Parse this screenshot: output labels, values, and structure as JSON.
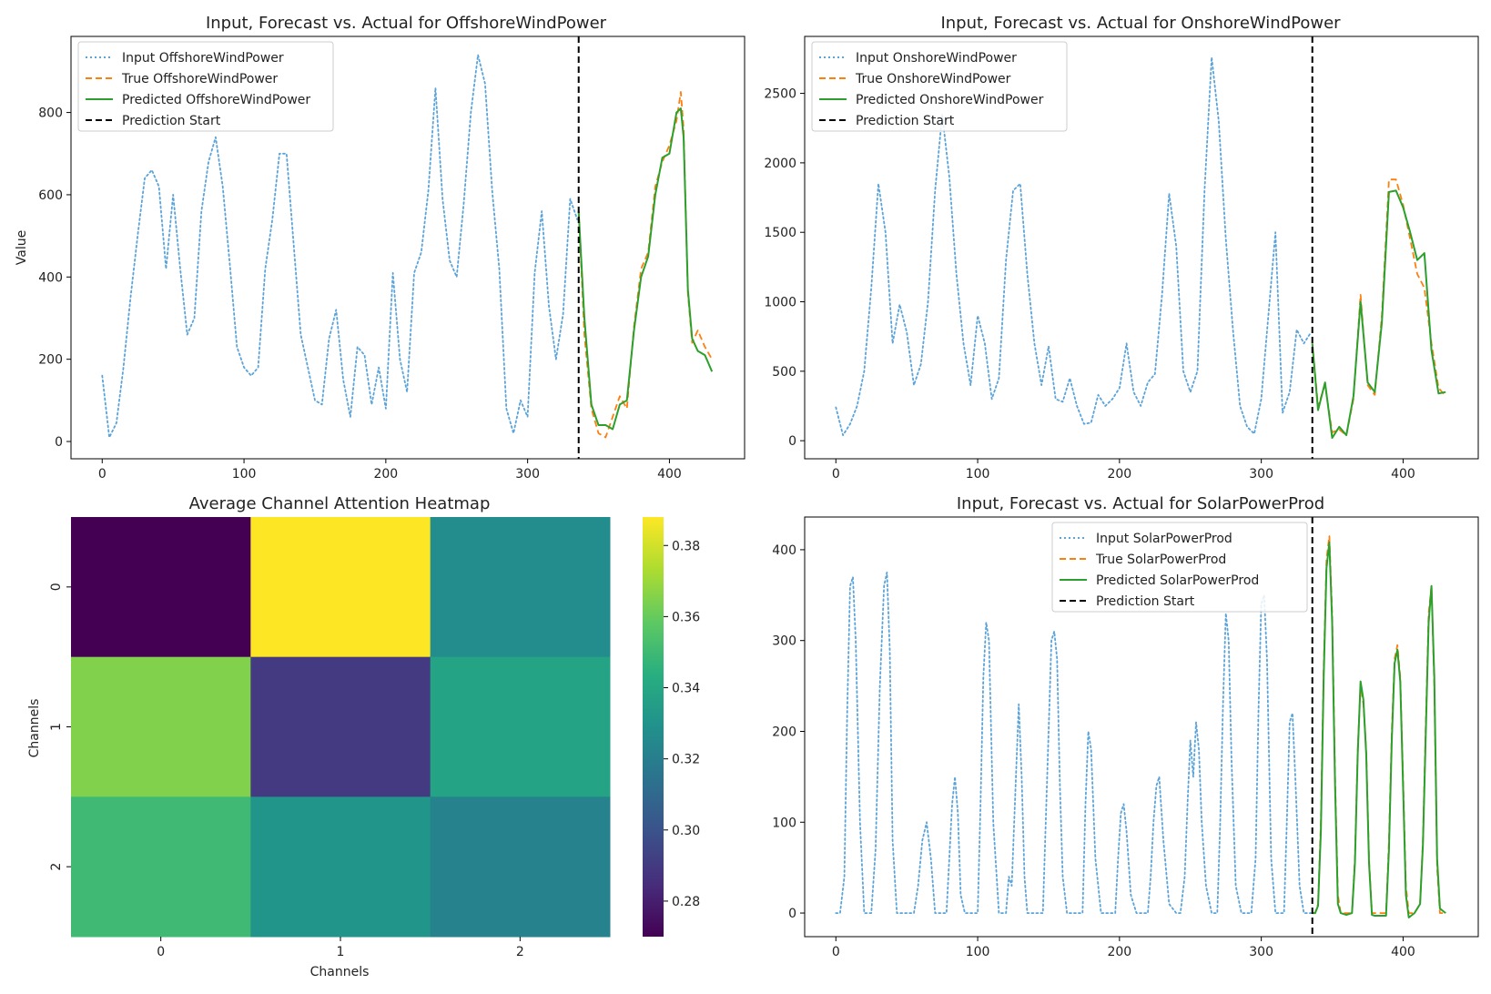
{
  "chart_data": [
    {
      "type": "line",
      "title": "Input, Forecast vs. Actual for OffshoreWindPower",
      "xlabel": "",
      "ylabel": "Value",
      "xlim": [
        -22,
        453
      ],
      "ylim": [
        -42,
        985
      ],
      "xticks": [
        0,
        100,
        200,
        300,
        400
      ],
      "yticks": [
        0,
        200,
        400,
        600,
        800
      ],
      "prediction_start": 336,
      "legend_position": "top-left",
      "legend": [
        "Input OffshoreWindPower",
        "True OffshoreWindPower",
        "Predicted OffshoreWindPower",
        "Prediction Start"
      ],
      "series": [
        {
          "name": "Input OffshoreWindPower",
          "style": "dotted",
          "color": "#5ba3d9",
          "x": [
            0,
            5,
            10,
            15,
            20,
            25,
            30,
            35,
            40,
            45,
            50,
            55,
            60,
            65,
            70,
            75,
            80,
            85,
            90,
            95,
            100,
            105,
            110,
            115,
            120,
            125,
            130,
            135,
            140,
            145,
            150,
            155,
            160,
            165,
            170,
            175,
            180,
            185,
            190,
            195,
            200,
            205,
            210,
            215,
            220,
            225,
            230,
            235,
            240,
            245,
            250,
            255,
            260,
            265,
            270,
            275,
            280,
            285,
            290,
            295,
            300,
            305,
            310,
            315,
            320,
            325,
            330,
            335
          ],
          "y": [
            160,
            10,
            45,
            180,
            350,
            500,
            640,
            660,
            620,
            420,
            600,
            420,
            260,
            300,
            560,
            680,
            740,
            620,
            430,
            230,
            180,
            160,
            180,
            420,
            540,
            700,
            700,
            480,
            260,
            180,
            100,
            90,
            250,
            320,
            150,
            60,
            230,
            210,
            90,
            180,
            80,
            410,
            200,
            120,
            410,
            460,
            610,
            860,
            590,
            440,
            400,
            580,
            800,
            940,
            870,
            610,
            420,
            80,
            20,
            100,
            60,
            410,
            560,
            330,
            200,
            310,
            590,
            540
          ]
        },
        {
          "name": "True OffshoreWindPower",
          "style": "dashed",
          "color": "#ff7f0e",
          "x": [
            336,
            340,
            345,
            350,
            355,
            360,
            365,
            370,
            375,
            380,
            385,
            390,
            395,
            400,
            405,
            408,
            410,
            413,
            416,
            420,
            425,
            430
          ],
          "y": [
            560,
            260,
            80,
            20,
            10,
            60,
            110,
            80,
            280,
            420,
            460,
            620,
            680,
            720,
            780,
            850,
            760,
            360,
            240,
            270,
            230,
            200
          ]
        },
        {
          "name": "Predicted OffshoreWindPower",
          "style": "solid",
          "color": "#2ca02c",
          "x": [
            336,
            340,
            345,
            350,
            355,
            360,
            365,
            370,
            375,
            380,
            385,
            390,
            395,
            400,
            405,
            408,
            410,
            413,
            416,
            420,
            425,
            430
          ],
          "y": [
            560,
            300,
            90,
            40,
            40,
            30,
            90,
            100,
            270,
            400,
            450,
            600,
            690,
            700,
            800,
            810,
            740,
            370,
            250,
            220,
            210,
            170
          ]
        }
      ]
    },
    {
      "type": "line",
      "title": "Input, Forecast vs. Actual for OnshoreWindPower",
      "xlabel": "",
      "ylabel": "",
      "xlim": [
        -22,
        453
      ],
      "ylim": [
        -130,
        2910
      ],
      "xticks": [
        0,
        100,
        200,
        300,
        400
      ],
      "yticks": [
        0,
        500,
        1000,
        1500,
        2000,
        2500
      ],
      "prediction_start": 336,
      "legend_position": "top-left",
      "legend": [
        "Input OnshoreWindPower",
        "True OnshoreWindPower",
        "Predicted OnshoreWindPower",
        "Prediction Start"
      ],
      "series": [
        {
          "name": "Input OnshoreWindPower",
          "style": "dotted",
          "color": "#5ba3d9",
          "x": [
            0,
            5,
            10,
            15,
            20,
            25,
            30,
            35,
            40,
            45,
            50,
            55,
            60,
            65,
            70,
            75,
            80,
            85,
            90,
            95,
            100,
            105,
            110,
            115,
            120,
            125,
            130,
            135,
            140,
            145,
            150,
            155,
            160,
            165,
            170,
            175,
            180,
            185,
            190,
            195,
            200,
            205,
            210,
            215,
            220,
            225,
            230,
            235,
            240,
            245,
            250,
            255,
            260,
            265,
            270,
            275,
            280,
            285,
            290,
            295,
            300,
            305,
            310,
            315,
            320,
            325,
            330,
            335
          ],
          "y": [
            240,
            40,
            120,
            250,
            500,
            1100,
            1850,
            1500,
            700,
            980,
            780,
            400,
            550,
            1000,
            1800,
            2350,
            1900,
            1200,
            700,
            400,
            900,
            700,
            300,
            450,
            1300,
            1800,
            1850,
            1200,
            700,
            400,
            680,
            300,
            280,
            450,
            250,
            120,
            130,
            330,
            250,
            300,
            380,
            700,
            350,
            250,
            420,
            480,
            1050,
            1780,
            1400,
            500,
            350,
            500,
            1800,
            2760,
            2300,
            1450,
            800,
            250,
            100,
            50,
            300,
            900,
            1500,
            200,
            350,
            800,
            700,
            780
          ]
        },
        {
          "name": "True OnshoreWindPower",
          "style": "dashed",
          "color": "#ff7f0e",
          "x": [
            336,
            340,
            345,
            350,
            355,
            360,
            365,
            370,
            375,
            380,
            385,
            390,
            395,
            400,
            405,
            410,
            415,
            420,
            425,
            430
          ],
          "y": [
            700,
            250,
            400,
            60,
            80,
            40,
            300,
            1050,
            400,
            330,
            900,
            1880,
            1880,
            1700,
            1450,
            1200,
            1100,
            700,
            380,
            320
          ]
        },
        {
          "name": "Predicted OnshoreWindPower",
          "style": "solid",
          "color": "#2ca02c",
          "x": [
            336,
            340,
            345,
            350,
            355,
            360,
            365,
            370,
            375,
            380,
            385,
            390,
            395,
            400,
            405,
            410,
            415,
            420,
            425,
            430
          ],
          "y": [
            700,
            220,
            420,
            20,
            100,
            40,
            320,
            1000,
            420,
            350,
            850,
            1790,
            1800,
            1680,
            1500,
            1300,
            1350,
            650,
            340,
            350
          ]
        }
      ]
    },
    {
      "type": "heatmap",
      "title": "Average Channel Attention Heatmap",
      "xlabel": "Channels",
      "ylabel": "Channels",
      "categories_x": [
        "0",
        "1",
        "2"
      ],
      "categories_y": [
        "0",
        "1",
        "2"
      ],
      "values": [
        [
          0.27,
          0.388,
          0.327
        ],
        [
          0.365,
          0.29,
          0.338
        ],
        [
          0.35,
          0.331,
          0.322
        ]
      ],
      "vmin": 0.27,
      "vmax": 0.388,
      "colorbar_ticks": [
        "0.28",
        "0.30",
        "0.32",
        "0.34",
        "0.36",
        "0.38"
      ]
    },
    {
      "type": "line",
      "title": "Input, Forecast vs. Actual for SolarPowerProd",
      "xlabel": "",
      "ylabel": "",
      "xlim": [
        -22,
        453
      ],
      "ylim": [
        -26,
        436
      ],
      "xticks": [
        0,
        100,
        200,
        300,
        400
      ],
      "yticks": [
        0,
        100,
        200,
        300,
        400
      ],
      "prediction_start": 336,
      "legend_position": "top-center",
      "legend": [
        "Input SolarPowerProd",
        "True SolarPowerProd",
        "Predicted SolarPowerProd",
        "Prediction Start"
      ],
      "series": [
        {
          "name": "Input SolarPowerProd",
          "style": "dotted",
          "color": "#5ba3d9",
          "x": [
            0,
            3,
            6,
            8,
            10,
            12,
            14,
            17,
            20,
            25,
            28,
            31,
            34,
            36,
            38,
            40,
            43,
            46,
            50,
            55,
            58,
            61,
            64,
            67,
            70,
            75,
            78,
            80,
            82,
            84,
            86,
            88,
            91,
            95,
            100,
            102,
            104,
            106,
            108,
            111,
            115,
            120,
            122,
            124,
            127,
            129,
            131,
            133,
            135,
            138,
            142,
            146,
            150,
            152,
            154,
            156,
            158,
            160,
            163,
            167,
            171,
            174,
            176,
            178,
            180,
            183,
            187,
            190,
            193,
            197,
            199,
            201,
            203,
            205,
            208,
            212,
            217,
            220,
            222,
            224,
            226,
            228,
            231,
            235,
            240,
            243,
            246,
            248,
            250,
            252,
            254,
            256,
            258,
            261,
            265,
            269,
            271,
            273,
            275,
            277,
            279,
            282,
            286,
            290,
            293,
            296,
            298,
            300,
            302,
            304,
            307,
            310,
            313,
            316,
            318,
            320,
            322,
            324,
            327,
            330,
            333,
            335
          ],
          "y": [
            0,
            0,
            40,
            220,
            360,
            370,
            300,
            100,
            0,
            0,
            70,
            250,
            360,
            375,
            290,
            80,
            0,
            0,
            0,
            0,
            30,
            80,
            100,
            60,
            0,
            0,
            0,
            60,
            120,
            150,
            110,
            20,
            0,
            0,
            0,
            120,
            260,
            320,
            300,
            100,
            0,
            0,
            40,
            30,
            150,
            230,
            150,
            40,
            0,
            0,
            0,
            0,
            200,
            300,
            310,
            280,
            140,
            40,
            0,
            0,
            0,
            0,
            120,
            200,
            180,
            60,
            0,
            0,
            0,
            0,
            60,
            110,
            120,
            90,
            20,
            0,
            0,
            0,
            40,
            100,
            140,
            150,
            80,
            10,
            0,
            0,
            40,
            120,
            190,
            150,
            210,
            180,
            100,
            30,
            0,
            0,
            100,
            230,
            330,
            300,
            170,
            30,
            0,
            0,
            0,
            60,
            220,
            340,
            350,
            280,
            60,
            0,
            0,
            0,
            100,
            210,
            220,
            150,
            30,
            0,
            0,
            0
          ]
        },
        {
          "name": "True SolarPowerProd",
          "style": "dashed",
          "color": "#ff7f0e",
          "x": [
            336,
            338,
            340,
            342,
            344,
            346,
            348,
            350,
            352,
            354,
            356,
            360,
            364,
            366,
            368,
            370,
            372,
            374,
            376,
            378,
            380,
            384,
            388,
            390,
            392,
            394,
            396,
            398,
            400,
            402,
            404,
            408,
            412,
            414,
            416,
            418,
            420,
            422,
            424,
            426,
            430
          ],
          "y": [
            0,
            0,
            10,
            100,
            270,
            390,
            415,
            330,
            150,
            20,
            0,
            0,
            0,
            60,
            180,
            250,
            230,
            180,
            60,
            0,
            0,
            0,
            0,
            80,
            200,
            280,
            295,
            260,
            150,
            30,
            0,
            0,
            10,
            80,
            210,
            330,
            360,
            250,
            50,
            0,
            0
          ]
        },
        {
          "name": "Predicted SolarPowerProd",
          "style": "solid",
          "color": "#2ca02c",
          "x": [
            336,
            338,
            340,
            342,
            344,
            346,
            348,
            350,
            352,
            354,
            356,
            360,
            364,
            366,
            368,
            370,
            372,
            374,
            376,
            378,
            380,
            384,
            388,
            390,
            392,
            394,
            396,
            398,
            400,
            402,
            404,
            408,
            412,
            414,
            416,
            418,
            420,
            422,
            424,
            426,
            430
          ],
          "y": [
            0,
            0,
            8,
            90,
            260,
            380,
            408,
            320,
            140,
            10,
            0,
            -2,
            0,
            55,
            175,
            255,
            235,
            175,
            55,
            -2,
            -3,
            -3,
            -3,
            70,
            190,
            275,
            290,
            255,
            140,
            20,
            -5,
            0,
            10,
            75,
            200,
            320,
            360,
            260,
            60,
            5,
            0
          ]
        }
      ]
    }
  ]
}
